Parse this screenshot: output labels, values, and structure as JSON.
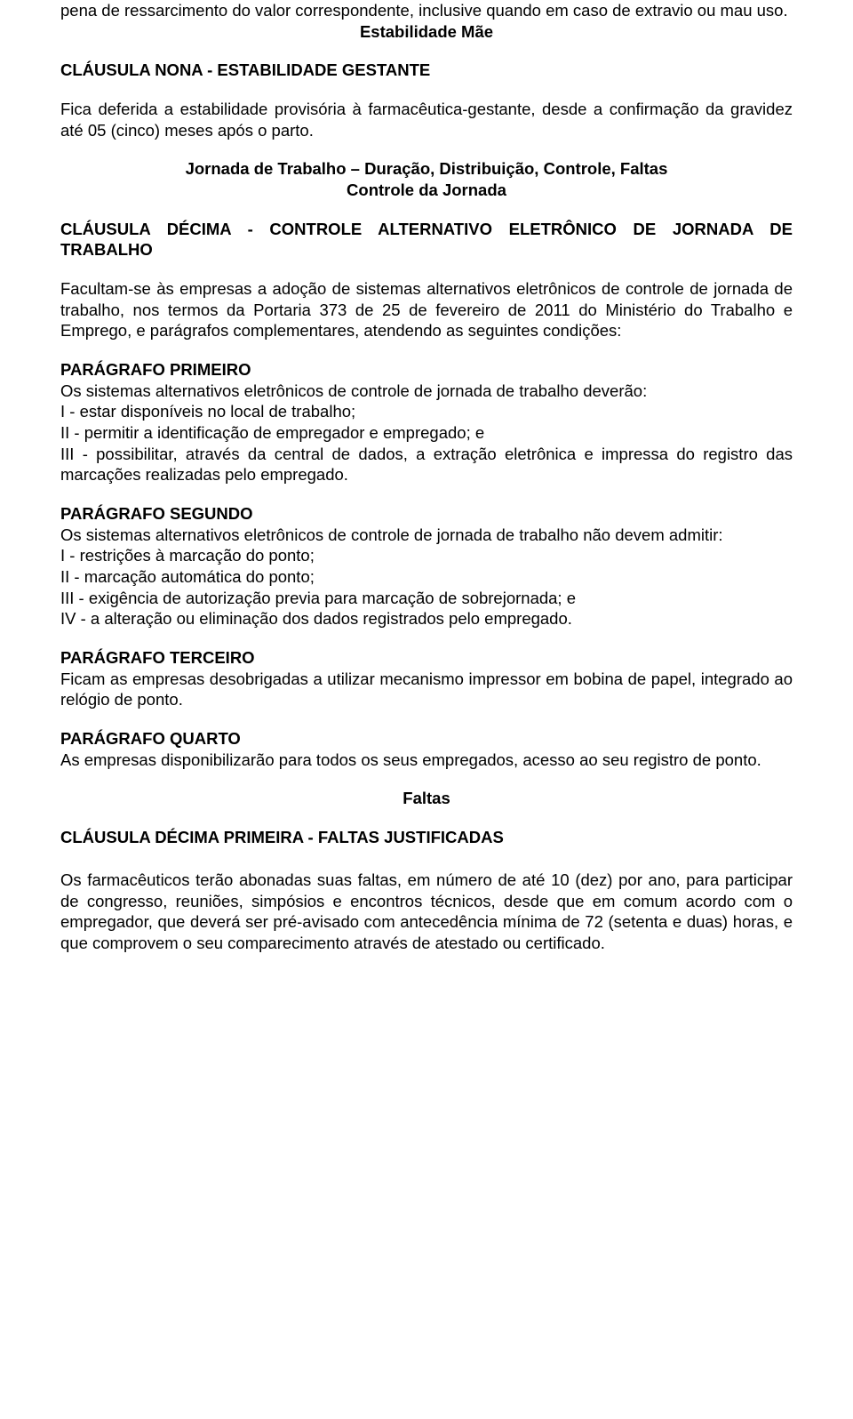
{
  "colors": {
    "text": "#000000",
    "background": "#ffffff"
  },
  "typography": {
    "font_family": "Verdana, Geneva, sans-serif",
    "font_size_pt": 14,
    "line_height": 1.28
  },
  "p01": "pena de ressarcimento do valor correspondente, inclusive quando em caso de extravio ou mau uso.",
  "h01": "Estabilidade Mãe",
  "h02": "CLÁUSULA NONA - ESTABILIDADE GESTANTE",
  "p02": "Fica deferida a estabilidade provisória à farmacêutica-gestante, desde a confirmação da gravidez até 05 (cinco) meses após o parto.",
  "h03a": "Jornada de Trabalho – Duração, Distribuição, Controle, Faltas",
  "h03b": "Controle da Jornada",
  "h04": "CLÁUSULA DÉCIMA - CONTROLE ALTERNATIVO ELETRÔNICO DE JORNADA DE TRABALHO",
  "p03": "Facultam-se às empresas a adoção de sistemas alternativos eletrônicos de controle de jornada de trabalho, nos termos da Portaria 373 de 25 de fevereiro de 2011 do Ministério do Trabalho e Emprego, e parágrafos complementares, atendendo as seguintes condições:",
  "h05": "PARÁGRAFO PRIMEIRO",
  "p04": "Os sistemas alternativos eletrônicos de controle de jornada de trabalho deverão:",
  "p05": "I - estar disponíveis no local de trabalho;",
  "p06": "II - permitir a identificação de empregador e empregado; e",
  "p07": "III - possibilitar, através da central de dados, a extração eletrônica e impressa do registro das marcações realizadas pelo empregado.",
  "h06": "PARÁGRAFO SEGUNDO",
  "p08": "Os sistemas alternativos eletrônicos de controle de jornada de trabalho não devem admitir:",
  "p09": "I - restrições à marcação do ponto;",
  "p10": "II - marcação automática do ponto;",
  "p11": "III - exigência de autorização previa para marcação de sobrejornada; e",
  "p12": "IV - a alteração ou eliminação dos dados registrados pelo empregado.",
  "h07": "PARÁGRAFO TERCEIRO",
  "p13": "Ficam as empresas desobrigadas a utilizar mecanismo impressor em bobina de papel, integrado ao relógio de ponto.",
  "h08": "PARÁGRAFO QUARTO",
  "p14": "As empresas disponibilizarão para todos os seus empregados, acesso ao seu registro de ponto.",
  "h09": "Faltas",
  "h10": "CLÁUSULA DÉCIMA PRIMEIRA - FALTAS JUSTIFICADAS",
  "p15": "Os farmacêuticos terão abonadas suas faltas, em número de até 10 (dez) por ano, para participar de congresso, reuniões, simpósios e encontros técnicos, desde que em comum acordo com o empregador, que deverá ser pré-avisado com antecedência mínima de 72 (setenta e duas) horas, e que comprovem o seu comparecimento através de atestado ou certificado."
}
